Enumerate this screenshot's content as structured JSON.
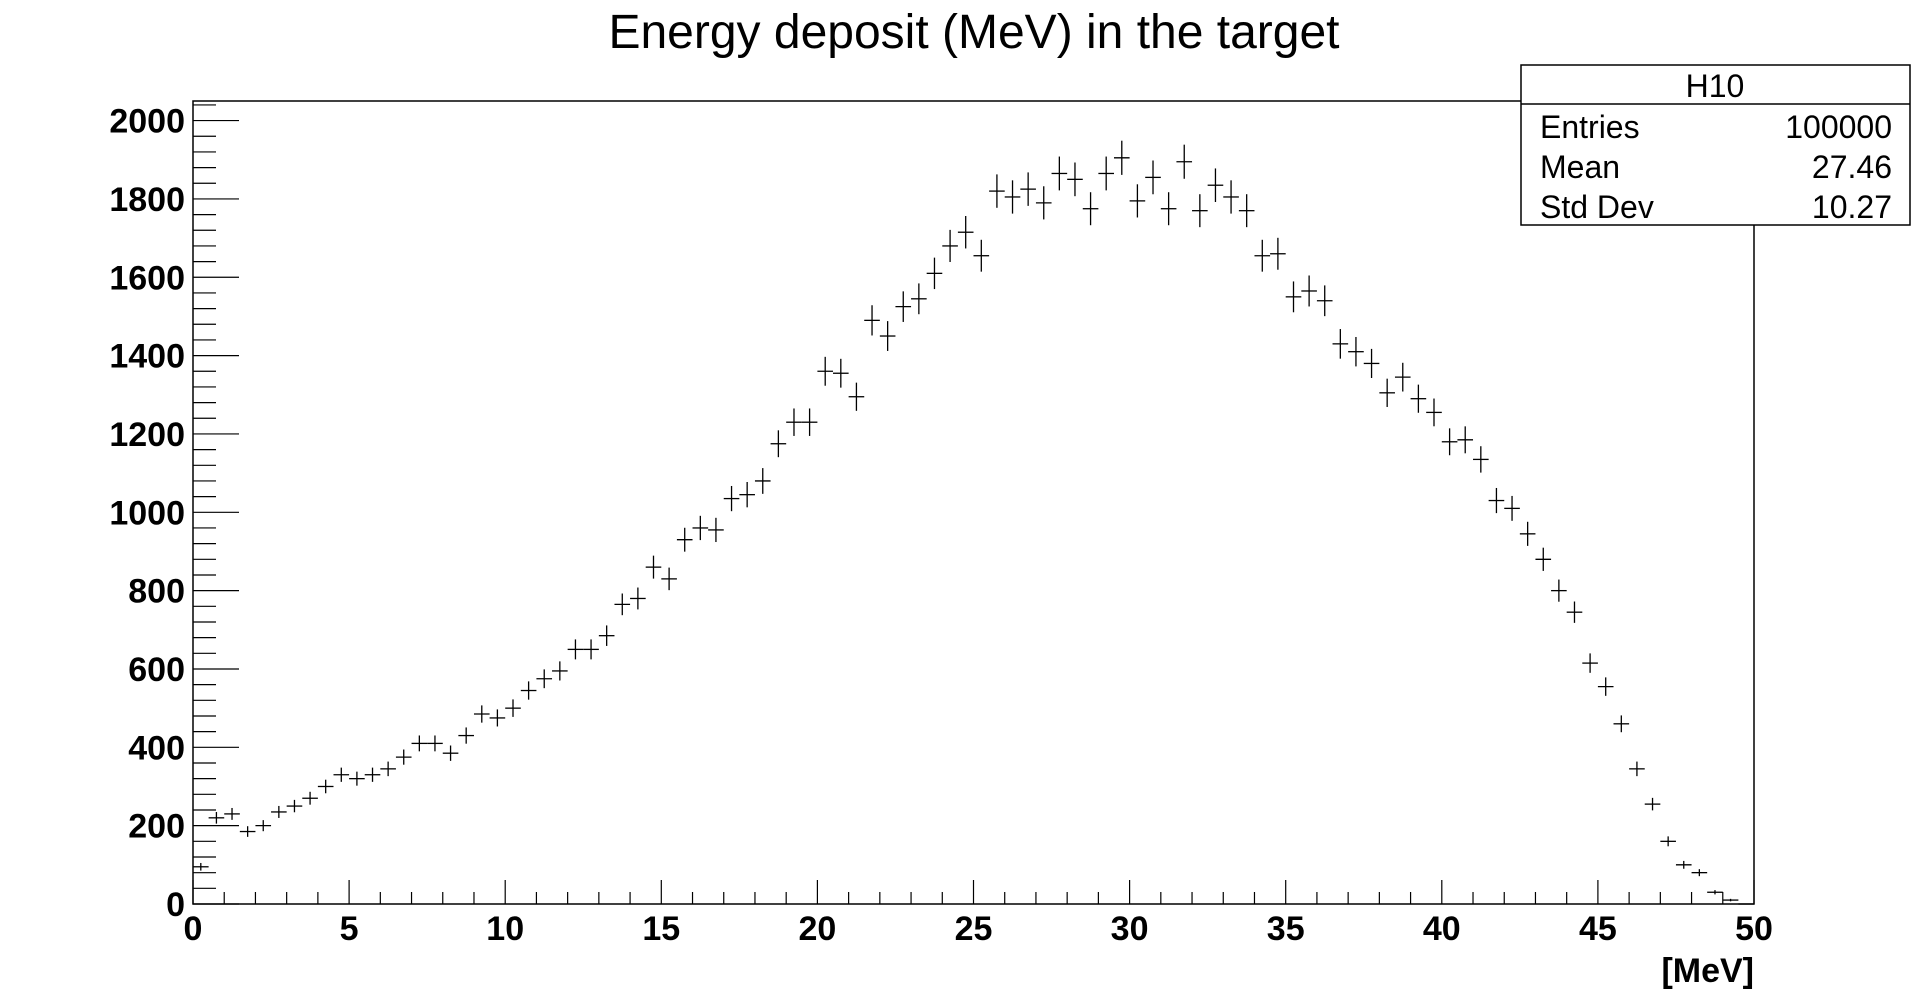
{
  "chart_data": {
    "type": "histogram",
    "title": "Energy deposit (MeV) in the target",
    "xlabel": "[MeV]",
    "ylabel": "",
    "xlim": [
      0,
      50
    ],
    "ylim": [
      0,
      2050
    ],
    "x_ticks": [
      0,
      5,
      10,
      15,
      20,
      25,
      30,
      35,
      40,
      45,
      50
    ],
    "y_ticks": [
      0,
      200,
      400,
      600,
      800,
      1000,
      1200,
      1400,
      1600,
      1800,
      2000
    ],
    "bin_width": 0.5,
    "bin_centers": [
      0.25,
      0.75,
      1.25,
      1.75,
      2.25,
      2.75,
      3.25,
      3.75,
      4.25,
      4.75,
      5.25,
      5.75,
      6.25,
      6.75,
      7.25,
      7.75,
      8.25,
      8.75,
      9.25,
      9.75,
      10.25,
      10.75,
      11.25,
      11.75,
      12.25,
      12.75,
      13.25,
      13.75,
      14.25,
      14.75,
      15.25,
      15.75,
      16.25,
      16.75,
      17.25,
      17.75,
      18.25,
      18.75,
      19.25,
      19.75,
      20.25,
      20.75,
      21.25,
      21.75,
      22.25,
      22.75,
      23.25,
      23.75,
      24.25,
      24.75,
      25.25,
      25.75,
      26.25,
      26.75,
      27.25,
      27.75,
      28.25,
      28.75,
      29.25,
      29.75,
      30.25,
      30.75,
      31.25,
      31.75,
      32.25,
      32.75,
      33.25,
      33.75,
      34.25,
      34.75,
      35.25,
      35.75,
      36.25,
      36.75,
      37.25,
      37.75,
      38.25,
      38.75,
      39.25,
      39.75,
      40.25,
      40.75,
      41.25,
      41.75,
      42.25,
      42.75,
      43.25,
      43.75,
      44.25,
      44.75,
      45.25,
      45.75,
      46.25,
      46.75,
      47.25,
      47.75,
      48.25,
      48.75,
      49.25,
      49.75
    ],
    "counts": [
      95,
      220,
      230,
      185,
      200,
      235,
      250,
      270,
      300,
      330,
      320,
      330,
      345,
      375,
      410,
      410,
      385,
      430,
      485,
      475,
      500,
      545,
      575,
      595,
      650,
      650,
      685,
      765,
      780,
      860,
      830,
      930,
      960,
      955,
      1035,
      1045,
      1080,
      1175,
      1230,
      1230,
      1360,
      1355,
      1295,
      1490,
      1450,
      1525,
      1545,
      1610,
      1680,
      1715,
      1655,
      1820,
      1805,
      1825,
      1790,
      1865,
      1850,
      1775,
      1865,
      1905,
      1795,
      1855,
      1775,
      1895,
      1770,
      1835,
      1805,
      1770,
      1655,
      1660,
      1550,
      1565,
      1540,
      1430,
      1410,
      1380,
      1305,
      1345,
      1290,
      1255,
      1180,
      1185,
      1135,
      1030,
      1010,
      945,
      880,
      800,
      745,
      615,
      555,
      460,
      345,
      255,
      160,
      100,
      80,
      30,
      10,
      0
    ],
    "stats_box": {
      "title": "H10",
      "rows": [
        {
          "label": "Entries",
          "value": "100000"
        },
        {
          "label": "Mean",
          "value": "27.46"
        },
        {
          "label": "Std Dev",
          "value": "10.27"
        }
      ]
    },
    "colors": {
      "marker": "#000000",
      "frame": "#000000",
      "background": "#ffffff"
    }
  }
}
